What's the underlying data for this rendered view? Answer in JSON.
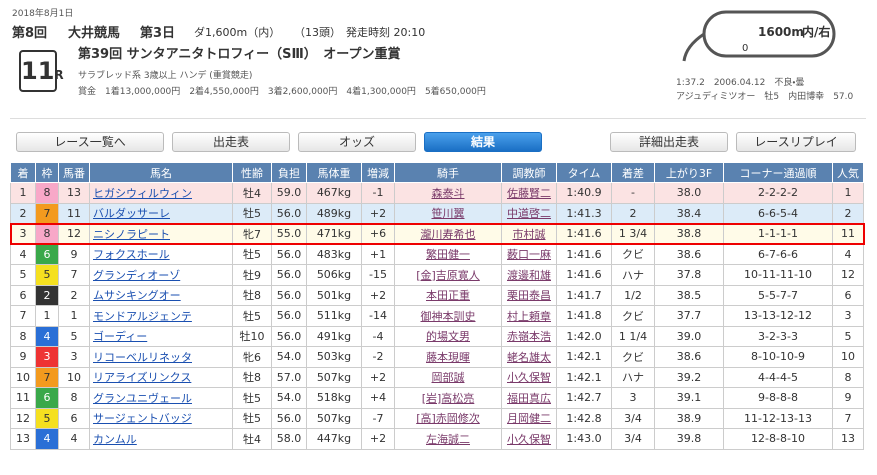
{
  "header": {
    "date": "2018年8月1日",
    "meeting": "第8回",
    "venue": "大井競馬",
    "day": "第3日",
    "distance": "ダ1,600m（内）",
    "runners": "（13頭）",
    "post_time": "発走時刻 20:10",
    "race_number": "11",
    "race_suffix": "R",
    "race_name": "第39回 サンタアニタトロフィー（SⅢ）　オープン重賞",
    "conditions": "サラブレッド系 3歳以上 ハンデ (重賞競走)",
    "prize_label": "賞金",
    "prizes": [
      "1着13,000,000円",
      "2着4,550,000円",
      "3着2,600,000円",
      "4着1,300,000円",
      "5着650,000円"
    ]
  },
  "course": {
    "distance": "1600m",
    "direction": "内/右",
    "start": "0"
  },
  "record": {
    "time": "1:37.2",
    "date": "2006.04.12",
    "condition": "不良・曇",
    "horse": "アジュディミツオー",
    "sex_age": "牡5",
    "jockey": "内田博幸",
    "weight": "57.0"
  },
  "nav": {
    "back": "レース一覧へ",
    "tabs": [
      "出走表",
      "オッズ",
      "結果"
    ],
    "detail": "詳細出走表",
    "replay": "レースリプレイ"
  },
  "table": {
    "columns": [
      "着",
      "枠",
      "馬番",
      "馬名",
      "性齢",
      "負担",
      "馬体重",
      "増減",
      "騎手",
      "調教師",
      "タイム",
      "着差",
      "上がり3F",
      "コーナー通過順",
      "人気"
    ],
    "rows": [
      [
        "1",
        "8",
        "13",
        "ヒガシウィルウィン",
        "牡4",
        "59.0",
        "467kg",
        "-1",
        "森泰斗",
        "佐藤賢二",
        "1:40.9",
        "-",
        "38.0",
        "2-2-2-2",
        "1"
      ],
      [
        "2",
        "7",
        "11",
        "バルダッサーレ",
        "牡5",
        "56.0",
        "489kg",
        "+2",
        "笹川翼",
        "中道啓二",
        "1:41.3",
        "2",
        "38.4",
        "6-6-5-4",
        "2"
      ],
      [
        "3",
        "8",
        "12",
        "ニシノラピート",
        "牝7",
        "55.0",
        "471kg",
        "+6",
        "瀧川寿希也",
        "市村誠",
        "1:41.6",
        "1 3/4",
        "38.8",
        "1-1-1-1",
        "11"
      ],
      [
        "4",
        "6",
        "9",
        "フォクスホール",
        "牡5",
        "56.0",
        "483kg",
        "+1",
        "繁田健一",
        "薮口一麻",
        "1:41.6",
        "クビ",
        "38.6",
        "6-7-6-6",
        "4"
      ],
      [
        "5",
        "5",
        "7",
        "グランディオーゾ",
        "牡9",
        "56.0",
        "506kg",
        "-15",
        "[金]吉原寛人",
        "渡邊和雄",
        "1:41.6",
        "ハナ",
        "37.8",
        "10-11-11-10",
        "12"
      ],
      [
        "6",
        "2",
        "2",
        "ムサシキングオー",
        "牡8",
        "56.0",
        "501kg",
        "+2",
        "本田正重",
        "栗田泰昌",
        "1:41.7",
        "1/2",
        "38.5",
        "5-5-7-7",
        "6"
      ],
      [
        "7",
        "1",
        "1",
        "モンドアルジェンテ",
        "牡5",
        "56.0",
        "511kg",
        "-14",
        "御神本訓史",
        "村上頼章",
        "1:41.8",
        "クビ",
        "37.7",
        "13-13-12-12",
        "3"
      ],
      [
        "8",
        "4",
        "5",
        "ゴーディー",
        "牡10",
        "56.0",
        "491kg",
        "-4",
        "的場文男",
        "赤嶺本浩",
        "1:42.0",
        "1 1/4",
        "39.0",
        "3-2-3-3",
        "5"
      ],
      [
        "9",
        "3",
        "3",
        "リコーベルリネッタ",
        "牝6",
        "54.0",
        "503kg",
        "-2",
        "藤本現暉",
        "蛯名雄太",
        "1:42.1",
        "クビ",
        "38.6",
        "8-10-10-9",
        "10"
      ],
      [
        "10",
        "7",
        "10",
        "リアライズリンクス",
        "牡8",
        "57.0",
        "507kg",
        "+2",
        "岡部誠",
        "小久保智",
        "1:42.1",
        "ハナ",
        "39.2",
        "4-4-4-5",
        "8"
      ],
      [
        "11",
        "6",
        "8",
        "グランユニヴェール",
        "牡5",
        "54.0",
        "518kg",
        "+4",
        "[岩]高松亮",
        "福田真広",
        "1:42.7",
        "3",
        "39.1",
        "9-8-8-8",
        "9"
      ],
      [
        "12",
        "5",
        "6",
        "サージェントバッジ",
        "牡5",
        "56.0",
        "507kg",
        "-7",
        "[高]赤岡修次",
        "月岡健二",
        "1:42.8",
        "3/4",
        "38.9",
        "11-12-13-13",
        "7"
      ],
      [
        "13",
        "4",
        "4",
        "カンムル",
        "牡4",
        "58.0",
        "447kg",
        "+2",
        "左海誠二",
        "小久保智",
        "1:43.0",
        "3/4",
        "39.8",
        "12-8-8-10",
        "13"
      ]
    ]
  }
}
